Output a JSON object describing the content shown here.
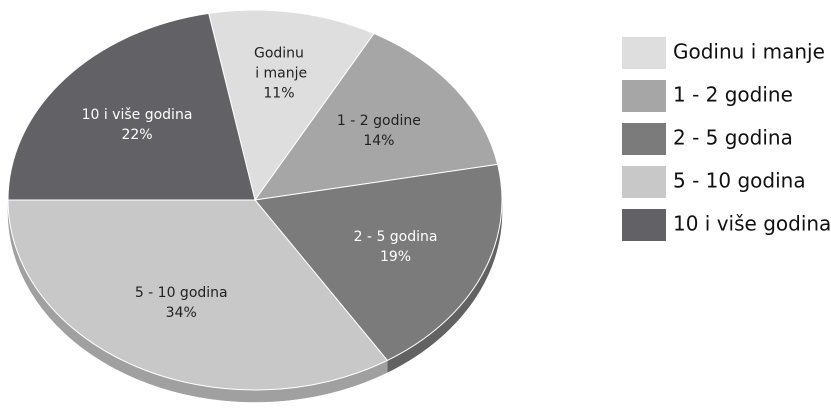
{
  "chart_data": {
    "type": "pie",
    "categories": [
      "Godinu i manje",
      "1 - 2 godine",
      "2 - 5 godina",
      "5 - 10 godina",
      "10 i više godina"
    ],
    "values": [
      11,
      14,
      19,
      34,
      22
    ],
    "value_labels": [
      "11%",
      "14%",
      "19%",
      "34%",
      "22%"
    ],
    "colors": [
      "#dedede",
      "#a6a6a6",
      "#7b7b7b",
      "#c8c8c8",
      "#626266"
    ],
    "legend": "right"
  }
}
